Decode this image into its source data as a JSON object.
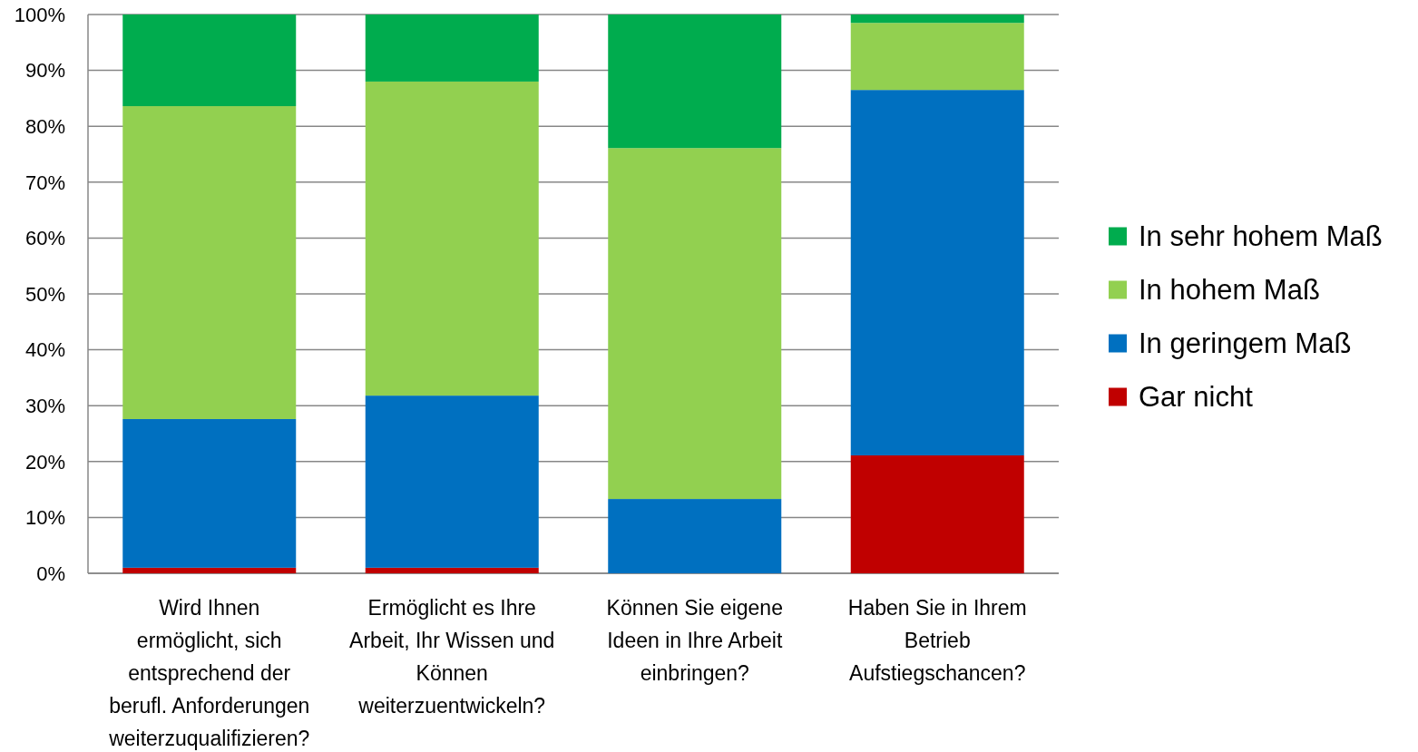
{
  "chart_data": {
    "type": "bar",
    "stacked": true,
    "categories": [
      "Wird Ihnen ermöglicht, sich entsprechend der berufl. Anforderungen weiterzuqualifizieren?",
      "Ermöglicht es Ihre Arbeit, Ihr Wissen und Können weiterzuentwickeln?",
      "Können Sie eigene Ideen in Ihre Arbeit einbringen?",
      "Haben Sie in Ihrem Betrieb Aufstiegschancen?"
    ],
    "series": [
      {
        "name": "Gar nicht",
        "color": "#c00000",
        "values": [
          1,
          1,
          0,
          21.1
        ]
      },
      {
        "name": "In geringem Maß",
        "color": "#0070c0",
        "values": [
          26.6,
          30.8,
          13.3,
          65.4
        ]
      },
      {
        "name": "In hohem Maß",
        "color": "#92d050",
        "values": [
          56,
          56.2,
          62.8,
          12
        ]
      },
      {
        "name": "In sehr hohem Maß",
        "color": "#00ac4e",
        "values": [
          16.4,
          12,
          23.9,
          1.5
        ]
      }
    ],
    "ylim": [
      0,
      100
    ],
    "yticks": [
      {
        "value": 0,
        "label": "0%"
      },
      {
        "value": 10,
        "label": "10%"
      },
      {
        "value": 20,
        "label": "20%"
      },
      {
        "value": 30,
        "label": "30%"
      },
      {
        "value": 40,
        "label": "40%"
      },
      {
        "value": 50,
        "label": "50%"
      },
      {
        "value": 60,
        "label": "60%"
      },
      {
        "value": 70,
        "label": "70%"
      },
      {
        "value": 80,
        "label": "80%"
      },
      {
        "value": 90,
        "label": "90%"
      },
      {
        "value": 100,
        "label": "100%"
      }
    ],
    "grid": "y",
    "legend": "right"
  }
}
